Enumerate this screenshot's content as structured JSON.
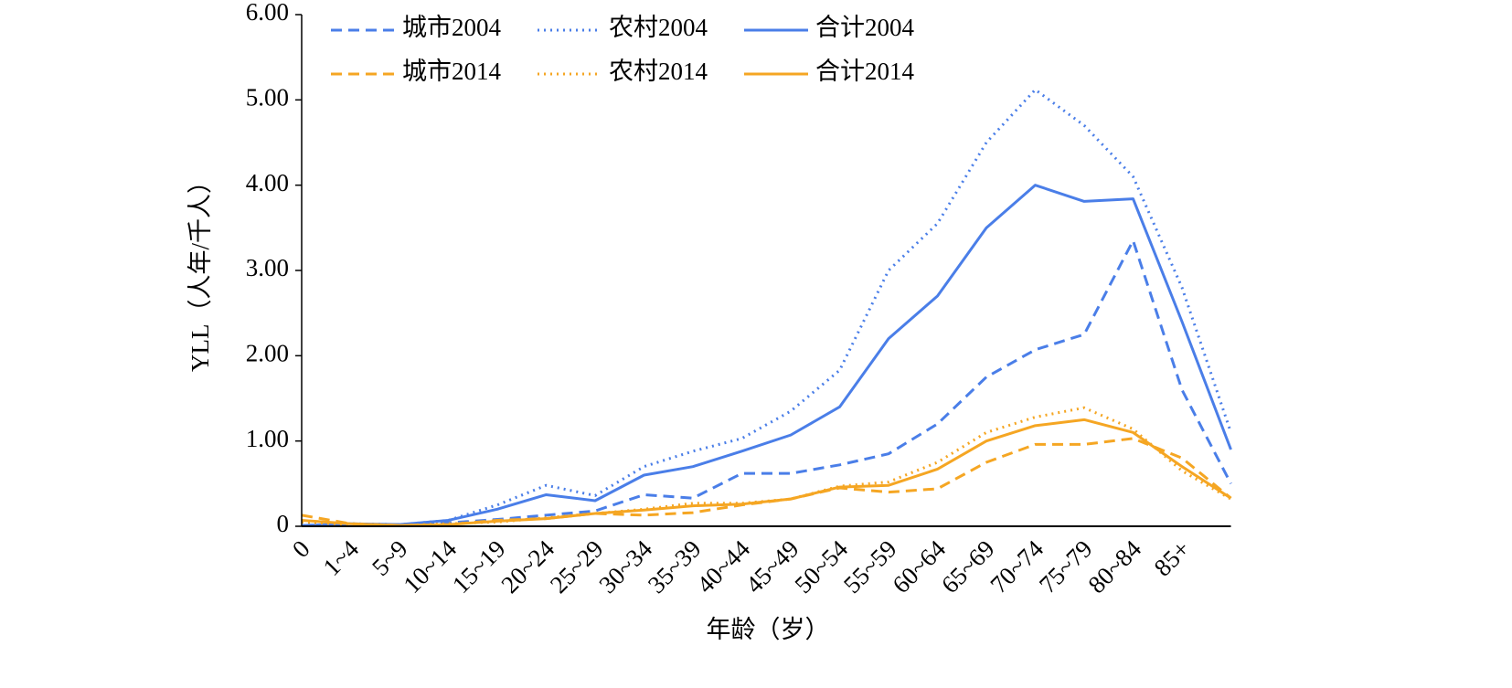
{
  "chart_data": {
    "type": "line",
    "xlabel": "年龄（岁）",
    "ylabel": "YLL（人年/千人）",
    "categories": [
      "0",
      "1~4",
      "5~9",
      "10~14",
      "15~19",
      "20~24",
      "25~29",
      "30~34",
      "35~39",
      "40~44",
      "45~49",
      "50~54",
      "55~59",
      "60~64",
      "65~69",
      "70~74",
      "75~79",
      "80~84",
      "85+",
      null
    ],
    "series": [
      {
        "name": "城市2004",
        "color": "#4a7ee8",
        "style": "dashed",
        "values": [
          0.01,
          0.02,
          0.02,
          0.04,
          0.08,
          0.13,
          0.18,
          0.37,
          0.33,
          0.62,
          0.62,
          0.72,
          0.85,
          1.2,
          1.75,
          2.07,
          2.25,
          3.35,
          1.6,
          0.5
        ]
      },
      {
        "name": "农村2004",
        "color": "#4a7ee8",
        "style": "dotted",
        "values": [
          0.01,
          0.03,
          0.02,
          0.07,
          0.25,
          0.48,
          0.36,
          0.7,
          0.88,
          1.03,
          1.35,
          1.83,
          3.0,
          3.55,
          4.5,
          5.12,
          4.7,
          4.1,
          2.8,
          1.1
        ]
      },
      {
        "name": "合计2004",
        "color": "#4a7ee8",
        "style": "solid",
        "values": [
          0.01,
          0.03,
          0.02,
          0.07,
          0.2,
          0.37,
          0.3,
          0.6,
          0.7,
          0.88,
          1.07,
          1.4,
          2.2,
          2.7,
          3.5,
          4.0,
          3.81,
          3.84,
          2.4,
          0.9
        ]
      },
      {
        "name": "城市2014",
        "color": "#f5a623",
        "style": "dashed",
        "values": [
          0.13,
          0.03,
          0.01,
          0.02,
          0.07,
          0.09,
          0.15,
          0.13,
          0.16,
          0.25,
          0.32,
          0.45,
          0.4,
          0.44,
          0.75,
          0.96,
          0.96,
          1.03,
          0.8,
          0.33
        ]
      },
      {
        "name": "农村2014",
        "color": "#f5a623",
        "style": "dotted",
        "values": [
          0.05,
          0.02,
          0.01,
          0.03,
          0.05,
          0.1,
          0.15,
          0.2,
          0.27,
          0.27,
          0.32,
          0.47,
          0.52,
          0.75,
          1.1,
          1.28,
          1.39,
          1.14,
          0.65,
          0.32
        ]
      },
      {
        "name": "合计2014",
        "color": "#f5a623",
        "style": "solid",
        "values": [
          0.07,
          0.03,
          0.01,
          0.02,
          0.06,
          0.09,
          0.15,
          0.19,
          0.24,
          0.26,
          0.32,
          0.46,
          0.48,
          0.67,
          1.0,
          1.18,
          1.25,
          1.1,
          0.7,
          0.33
        ]
      }
    ],
    "ylim": [
      0,
      6
    ],
    "yticks": [
      0,
      {
        "value": 1,
        "label": "1.00"
      },
      {
        "value": 2,
        "label": "2.00"
      },
      {
        "value": 3,
        "label": "3.00"
      },
      {
        "value": 4,
        "label": "4.00"
      },
      {
        "value": 5,
        "label": "5.00"
      },
      {
        "value": 6,
        "label": "6.00"
      }
    ],
    "grid": false,
    "legend": "top"
  }
}
